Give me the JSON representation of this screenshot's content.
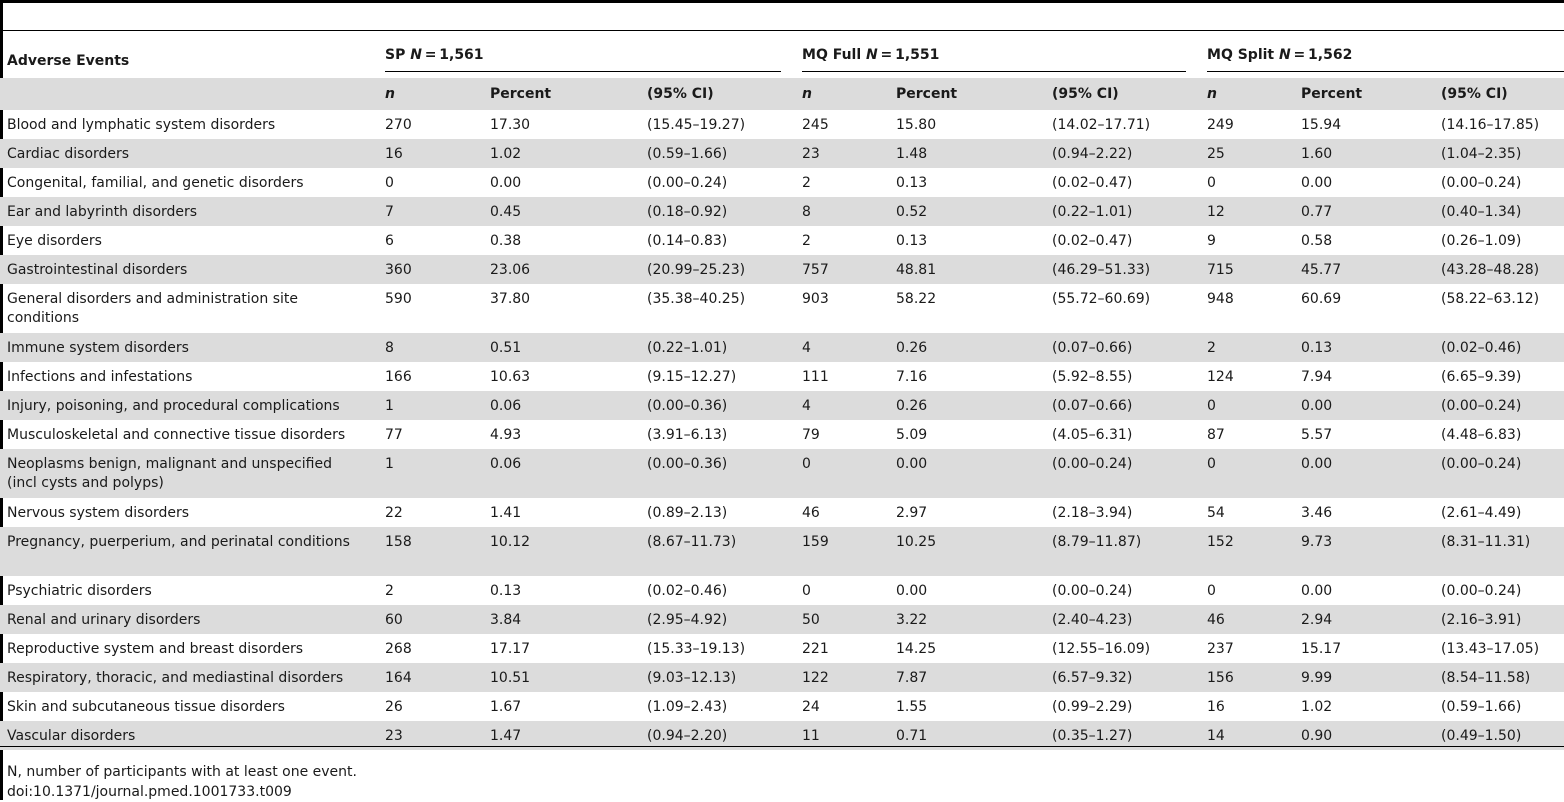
{
  "table": {
    "label_header": "Adverse Events",
    "groups": [
      {
        "name": "SP",
        "n_label": "N",
        "n_value": " = 1,561"
      },
      {
        "name": "MQ Full",
        "n_label": "N",
        "n_value": " = 1,551"
      },
      {
        "name": "MQ Split",
        "n_label": "N",
        "n_value": " = 1,562"
      }
    ],
    "sub_headers": {
      "n": "n",
      "percent": "Percent",
      "ci": "(95% CI)"
    },
    "rows": [
      {
        "label": "Blood and lymphatic system disorders",
        "v": [
          "270",
          "17.30",
          "(15.45–19.27)",
          "245",
          "15.80",
          "(14.02–17.71)",
          "249",
          "15.94",
          "(14.16–17.85)"
        ]
      },
      {
        "label": "Cardiac disorders",
        "v": [
          "16",
          "1.02",
          "(0.59–1.66)",
          "23",
          "1.48",
          "(0.94–2.22)",
          "25",
          "1.60",
          "(1.04–2.35)"
        ]
      },
      {
        "label": "Congenital, familial, and genetic disorders",
        "v": [
          "0",
          "0.00",
          "(0.00–0.24)",
          "2",
          "0.13",
          "(0.02–0.47)",
          "0",
          "0.00",
          "(0.00–0.24)"
        ]
      },
      {
        "label": "Ear and labyrinth disorders",
        "v": [
          "7",
          "0.45",
          "(0.18–0.92)",
          "8",
          "0.52",
          "(0.22–1.01)",
          "12",
          "0.77",
          "(0.40–1.34)"
        ]
      },
      {
        "label": "Eye disorders",
        "v": [
          "6",
          "0.38",
          "(0.14–0.83)",
          "2",
          "0.13",
          "(0.02–0.47)",
          "9",
          "0.58",
          "(0.26–1.09)"
        ]
      },
      {
        "label": "Gastrointestinal disorders",
        "v": [
          "360",
          "23.06",
          "(20.99–25.23)",
          "757",
          "48.81",
          "(46.29–51.33)",
          "715",
          "45.77",
          "(43.28–48.28)"
        ]
      },
      {
        "label": "General disorders and administration site conditions",
        "v": [
          "590",
          "37.80",
          "(35.38–40.25)",
          "903",
          "58.22",
          "(55.72–60.69)",
          "948",
          "60.69",
          "(58.22–63.12)"
        ]
      },
      {
        "label": "Immune system disorders",
        "v": [
          "8",
          "0.51",
          "(0.22–1.01)",
          "4",
          "0.26",
          "(0.07–0.66)",
          "2",
          "0.13",
          "(0.02–0.46)"
        ]
      },
      {
        "label": "Infections and infestations",
        "v": [
          "166",
          "10.63",
          "(9.15–12.27)",
          "111",
          "7.16",
          "(5.92–8.55)",
          "124",
          "7.94",
          "(6.65–9.39)"
        ]
      },
      {
        "label": "Injury, poisoning, and procedural complications",
        "v": [
          "1",
          "0.06",
          "(0.00–0.36)",
          "4",
          "0.26",
          "(0.07–0.66)",
          "0",
          "0.00",
          "(0.00–0.24)"
        ]
      },
      {
        "label": "Musculoskeletal and connective tissue disorders",
        "v": [
          "77",
          "4.93",
          "(3.91–6.13)",
          "79",
          "5.09",
          "(4.05–6.31)",
          "87",
          "5.57",
          "(4.48–6.83)"
        ]
      },
      {
        "label": "Neoplasms benign, malignant and unspecified (incl cysts and polyps)",
        "v": [
          "1",
          "0.06",
          "(0.00–0.36)",
          "0",
          "0.00",
          "(0.00–0.24)",
          "0",
          "0.00",
          "(0.00–0.24)"
        ]
      },
      {
        "label": "Nervous system disorders",
        "v": [
          "22",
          "1.41",
          "(0.89–2.13)",
          "46",
          "2.97",
          "(2.18–3.94)",
          "54",
          "3.46",
          "(2.61–4.49)"
        ]
      },
      {
        "label": "Pregnancy, puerperium, and perinatal conditions",
        "v": [
          "158",
          "10.12",
          "(8.67–11.73)",
          "159",
          "10.25",
          "(8.79–11.87)",
          "152",
          "9.73",
          "(8.31–11.31)"
        ]
      },
      {
        "label": "Psychiatric disorders",
        "v": [
          "2",
          "0.13",
          "(0.02–0.46)",
          "0",
          "0.00",
          "(0.00–0.24)",
          "0",
          "0.00",
          "(0.00–0.24)"
        ]
      },
      {
        "label": "Renal and urinary disorders",
        "v": [
          "60",
          "3.84",
          "(2.95–4.92)",
          "50",
          "3.22",
          "(2.40–4.23)",
          "46",
          "2.94",
          "(2.16–3.91)"
        ]
      },
      {
        "label": "Reproductive system and breast disorders",
        "v": [
          "268",
          "17.17",
          "(15.33–19.13)",
          "221",
          "14.25",
          "(12.55–16.09)",
          "237",
          "15.17",
          "(13.43–17.05)"
        ]
      },
      {
        "label": "Respiratory, thoracic, and mediastinal disorders",
        "v": [
          "164",
          "10.51",
          "(9.03–12.13)",
          "122",
          "7.87",
          "(6.57–9.32)",
          "156",
          "9.99",
          "(8.54–11.58)"
        ]
      },
      {
        "label": "Skin and subcutaneous tissue disorders",
        "v": [
          "26",
          "1.67",
          "(1.09–2.43)",
          "24",
          "1.55",
          "(0.99–2.29)",
          "16",
          "1.02",
          "(0.59–1.66)"
        ]
      },
      {
        "label": "Vascular disorders",
        "v": [
          "23",
          "1.47",
          "(0.94–2.20)",
          "11",
          "0.71",
          "(0.35–1.27)",
          "14",
          "0.90",
          "(0.49–1.50)"
        ]
      }
    ]
  },
  "footnotes": [
    "N, number of participants with at least one event.",
    "doi:10.1371/journal.pmed.1001733.t009"
  ]
}
